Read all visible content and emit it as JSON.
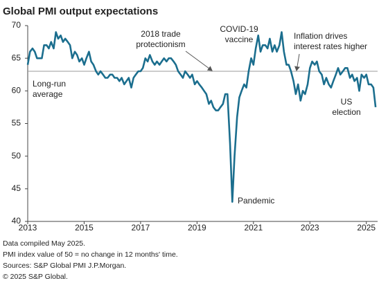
{
  "chart_data": {
    "type": "line",
    "title": "Global PMI output expectations",
    "x": [
      2013,
      2013.08,
      2013.17,
      2013.25,
      2013.33,
      2013.42,
      2013.5,
      2013.58,
      2013.67,
      2013.75,
      2013.83,
      2013.92,
      2014,
      2014.08,
      2014.17,
      2014.25,
      2014.33,
      2014.42,
      2014.5,
      2014.58,
      2014.67,
      2014.75,
      2014.83,
      2014.92,
      2015,
      2015.08,
      2015.17,
      2015.25,
      2015.33,
      2015.42,
      2015.5,
      2015.58,
      2015.67,
      2015.75,
      2015.83,
      2015.92,
      2016,
      2016.08,
      2016.17,
      2016.25,
      2016.33,
      2016.42,
      2016.5,
      2016.58,
      2016.67,
      2016.75,
      2016.83,
      2016.92,
      2017,
      2017.08,
      2017.17,
      2017.25,
      2017.33,
      2017.42,
      2017.5,
      2017.58,
      2017.67,
      2017.75,
      2017.83,
      2017.92,
      2018,
      2018.08,
      2018.17,
      2018.25,
      2018.33,
      2018.42,
      2018.5,
      2018.58,
      2018.67,
      2018.75,
      2018.83,
      2018.92,
      2019,
      2019.08,
      2019.17,
      2019.25,
      2019.33,
      2019.42,
      2019.5,
      2019.58,
      2019.67,
      2019.75,
      2019.83,
      2019.92,
      2020,
      2020.08,
      2020.17,
      2020.25,
      2020.33,
      2020.42,
      2020.5,
      2020.58,
      2020.67,
      2020.75,
      2020.83,
      2020.92,
      2021,
      2021.08,
      2021.17,
      2021.25,
      2021.33,
      2021.42,
      2021.5,
      2021.58,
      2021.67,
      2021.75,
      2021.83,
      2021.92,
      2022,
      2022.08,
      2022.17,
      2022.25,
      2022.33,
      2022.42,
      2022.5,
      2022.58,
      2022.67,
      2022.75,
      2022.83,
      2022.92,
      2023,
      2023.08,
      2023.17,
      2023.25,
      2023.33,
      2023.42,
      2023.5,
      2023.58,
      2023.67,
      2023.75,
      2023.83,
      2023.92,
      2024,
      2024.08,
      2024.17,
      2024.25,
      2024.33,
      2024.42,
      2024.5,
      2024.58,
      2024.67,
      2024.75,
      2024.83,
      2024.92,
      2025,
      2025.08,
      2025.17,
      2025.25,
      2025.33
    ],
    "series": [
      {
        "color": "#1b6e8e",
        "values": [
          64,
          66,
          66.5,
          66,
          65,
          65,
          65,
          67,
          67,
          66.5,
          67.5,
          66.5,
          69,
          68,
          68.5,
          67.5,
          68,
          67.5,
          67,
          65,
          66,
          65.5,
          64.5,
          65,
          64,
          65,
          66,
          64.5,
          64,
          63,
          62.5,
          63,
          62.5,
          62,
          62,
          62.5,
          62.5,
          62,
          62,
          61.5,
          62,
          61,
          61.5,
          62,
          60.5,
          62,
          62.5,
          63,
          63,
          63.5,
          65,
          64.5,
          65.5,
          64.5,
          64,
          64.5,
          64,
          64.5,
          65,
          64.5,
          65,
          65,
          64.5,
          64,
          63,
          62.5,
          62,
          63,
          62.5,
          62,
          62.5,
          61,
          61.5,
          61,
          60.5,
          60,
          59.5,
          58,
          58.5,
          57.5,
          57,
          57,
          57.5,
          58,
          59.5,
          59.5,
          52,
          43,
          50,
          56,
          59,
          60,
          61,
          60.5,
          63,
          65,
          64,
          66.5,
          68.5,
          66,
          67,
          67,
          66.5,
          68,
          66,
          67,
          66,
          67,
          69,
          66,
          64,
          64,
          63,
          61.5,
          59.5,
          61,
          58.5,
          60,
          59.5,
          61,
          63.5,
          64.5,
          64,
          64.5,
          63,
          62.5,
          61,
          62,
          61,
          60.5,
          61.5,
          62.5,
          63.5,
          62.5,
          63,
          63.5,
          63.5,
          62,
          62.5,
          61.5,
          62,
          60,
          62.5,
          62,
          62.5,
          61,
          61,
          60.5,
          57.5
        ]
      }
    ],
    "average_line": 63,
    "average_color": "#999999",
    "xlim": [
      2013,
      2025.4
    ],
    "xticks": [
      2013,
      2015,
      2017,
      2019,
      2021,
      2023,
      2025
    ],
    "ylim": [
      40,
      70
    ],
    "yticks": [
      40,
      45,
      50,
      55,
      60,
      65,
      70
    ],
    "annotations": [
      {
        "text": [
          "2018 trade",
          "protectionism"
        ]
      },
      {
        "text": [
          "COVID-19",
          "vaccine"
        ]
      },
      {
        "text": [
          "Inflation drives",
          "interest rates higher"
        ]
      },
      {
        "text": [
          "Long-run",
          "average"
        ]
      },
      {
        "text": [
          "Pandemic"
        ]
      },
      {
        "text": [
          "US",
          "election"
        ]
      }
    ],
    "footnotes": [
      "Data compiled May 2025.",
      "PMI index value of 50 = no change in 12 months' time.",
      "Sources: S&P Global PMI J.P.Morgan.",
      "© 2025 S&P Global."
    ]
  }
}
